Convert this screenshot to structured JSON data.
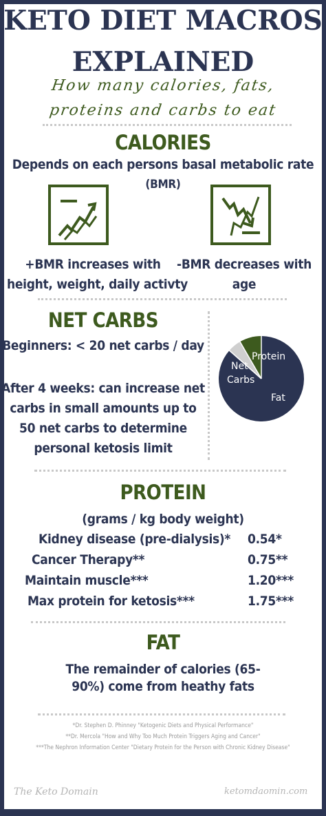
{
  "header": {
    "title_line1": "KETO DIET MACROS",
    "title_line2": "EXPLAINED",
    "subtitle_line1": "How many calories, fats,",
    "subtitle_line2": "proteins and carbs to eat"
  },
  "calories": {
    "heading": "CALORIES",
    "description_line1": "Depends on each persons basal metabolic rate",
    "description_line2": "(BMR)",
    "increase_icon": "trend-up-icon",
    "decrease_icon": "trend-down-icon",
    "increase_line1": "+BMR increases with",
    "increase_line2": "height, weight, daily activty",
    "decrease_line1": "-BMR decreases with",
    "decrease_line2": "age"
  },
  "net_carbs": {
    "heading": "NET CARBS",
    "beginners": "Beginners: < 20 net carbs / day",
    "after_line1": "After 4 weeks: can increase net",
    "after_line2": "carbs in small amounts up to",
    "after_line3": "50 net carbs to determine",
    "after_line4": "personal ketosis limit",
    "pie": {
      "labels": {
        "protein": "Protein",
        "net_line1": "Net",
        "net_line2": "Carbs",
        "fat": "Fat"
      },
      "colors": {
        "fat": "#2b3452",
        "protein": "#3d5a1e",
        "net_carbs": "#cfcfcf"
      }
    }
  },
  "protein": {
    "heading": "PROTEIN",
    "subheading": "(grams / kg body weight)",
    "rows": [
      {
        "label": "Kidney disease (pre-dialysis)*",
        "value": "0.54*"
      },
      {
        "label": "Cancer Therapy**",
        "value": "0.75**"
      },
      {
        "label": "Maintain muscle***",
        "value": "1.20***"
      },
      {
        "label": "Max protein for ketosis***",
        "value": "1.75***"
      }
    ]
  },
  "fat": {
    "heading": "FAT",
    "line1": "The remainder of calories (65-",
    "line2": "90%) come from heathy fats"
  },
  "footnotes": [
    "*Dr. Stephen D. Phinney \"Ketogenic Diets and Physical Performance\"",
    "**Dr. Mercola \"How and Why Too Much Protein Triggers Aging and Cancer\"",
    "***The Nephron Information Center \"Dietary Protein for the Person with Chronic Kidney Disease\""
  ],
  "signature": {
    "left": "The Keto Domain",
    "right": "ketomdaomin.com"
  }
}
